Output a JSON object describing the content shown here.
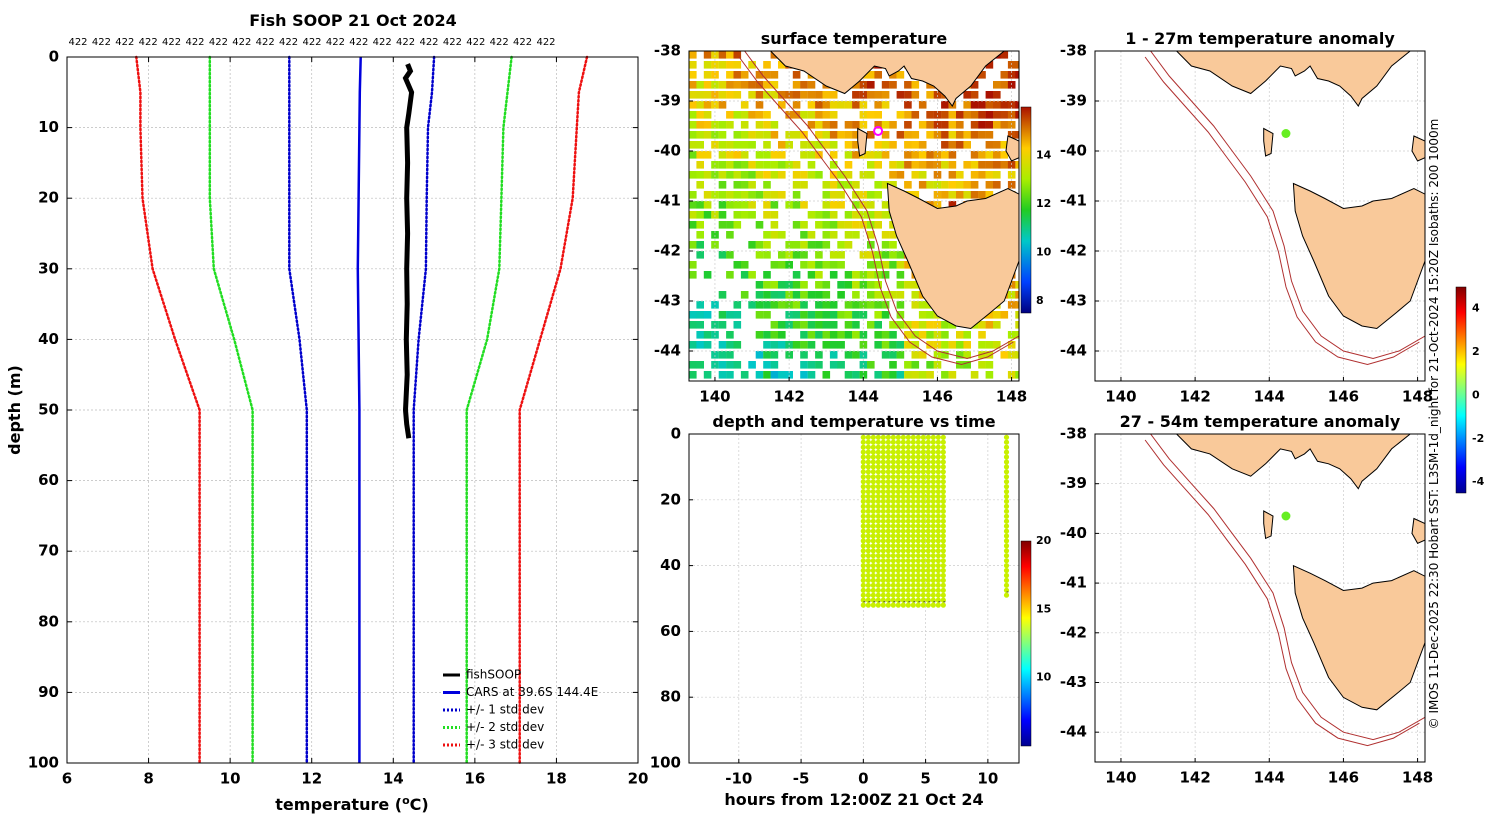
{
  "figure": {
    "side_note": "© IMOS 11-Dec-2025 22:30 Hobart SST: L3SM-1d_night for 21-Oct-2024 15:20Z Isobaths: 200  1000m"
  },
  "colors": {
    "land": "#f9c99a",
    "isobath": "#b03030",
    "fishsoop": "#000000",
    "cars": "#0000dd",
    "std1": "#0000cc",
    "std2": "#22dd22",
    "std3": "#ee1111",
    "marker": "#ff00ff",
    "anomaly_point": "#66ee22",
    "timeseries_point": "#c8f000"
  },
  "chart_data": [
    {
      "id": "profile",
      "type": "line",
      "title": "Fish SOOP 21 Oct 2024",
      "xlabel": "temperature (oC)",
      "ylabel": "depth (m)",
      "xlim": [
        6,
        20
      ],
      "ylim": [
        100,
        0
      ],
      "y_reversed": true,
      "grid": true,
      "xticks": [
        "6",
        "8",
        "10",
        "12",
        "14",
        "16",
        "18",
        "20"
      ],
      "yticks": [
        "0",
        "10",
        "20",
        "30",
        "40",
        "50",
        "60",
        "70",
        "80",
        "90",
        "100"
      ],
      "top_labels": [
        "422",
        "422",
        "422",
        "422",
        "422",
        "422",
        "422",
        "422",
        "422",
        "422",
        "422",
        "422",
        "422",
        "422",
        "422",
        "422",
        "422",
        "422",
        "422",
        "422",
        "422"
      ],
      "legend_position": "bottom-right",
      "series": [
        {
          "name": "fishSOOP",
          "style": "solid",
          "color_key": "fishsoop",
          "depth": [
            1,
            2,
            3,
            5,
            8,
            10,
            15,
            20,
            25,
            30,
            35,
            40,
            45,
            50,
            52,
            54
          ],
          "temp": [
            14.35,
            14.42,
            14.3,
            14.45,
            14.38,
            14.33,
            14.35,
            14.33,
            14.35,
            14.33,
            14.34,
            14.32,
            14.34,
            14.3,
            14.33,
            14.38
          ]
        },
        {
          "name": "CARS at 39.6S 144.4E",
          "style": "solid",
          "color_key": "cars",
          "depth": [
            0,
            5,
            10,
            20,
            30,
            40,
            50,
            60,
            70,
            80,
            90,
            100
          ],
          "temp": [
            13.2,
            13.18,
            13.17,
            13.15,
            13.13,
            13.15,
            13.17,
            13.17,
            13.17,
            13.17,
            13.17,
            13.17
          ]
        },
        {
          "name": "+/- 1 std dev",
          "style": "dotted",
          "color_key": "std1",
          "depth": [
            0,
            5,
            10,
            20,
            30,
            40,
            50,
            60,
            70,
            80,
            90,
            100
          ],
          "temp_low": [
            11.45,
            11.45,
            11.45,
            11.45,
            11.45,
            11.7,
            11.88,
            11.88,
            11.88,
            11.88,
            11.88,
            11.88
          ],
          "temp_high": [
            15.0,
            14.95,
            14.85,
            14.82,
            14.8,
            14.62,
            14.5,
            14.5,
            14.5,
            14.5,
            14.5,
            14.5
          ]
        },
        {
          "name": "+/- 2 std dev",
          "style": "dotted",
          "color_key": "std2",
          "depth": [
            0,
            5,
            10,
            20,
            30,
            40,
            50,
            60,
            70,
            80,
            90,
            100
          ],
          "temp_low": [
            9.5,
            9.5,
            9.5,
            9.5,
            9.6,
            10.1,
            10.55,
            10.55,
            10.55,
            10.55,
            10.55,
            10.55
          ],
          "temp_high": [
            16.9,
            16.8,
            16.7,
            16.65,
            16.6,
            16.3,
            15.8,
            15.8,
            15.8,
            15.8,
            15.8,
            15.8
          ]
        },
        {
          "name": "+/- 3 std dev",
          "style": "dotted",
          "color_key": "std3",
          "depth": [
            0,
            5,
            10,
            20,
            30,
            40,
            50,
            60,
            70,
            80,
            90,
            100
          ],
          "temp_low": [
            7.7,
            7.8,
            7.8,
            7.85,
            8.1,
            8.65,
            9.25,
            9.25,
            9.25,
            9.25,
            9.25,
            9.25
          ],
          "temp_high": [
            18.75,
            18.55,
            18.5,
            18.4,
            18.1,
            17.6,
            17.1,
            17.1,
            17.1,
            17.1,
            17.1,
            17.1
          ]
        }
      ]
    },
    {
      "id": "sst_map",
      "type": "heatmap",
      "title": "surface temperature",
      "xlim": [
        139.3,
        148.2
      ],
      "ylim": [
        -44.6,
        -38
      ],
      "xticks": [
        "140",
        "142",
        "144",
        "146",
        "148"
      ],
      "yticks": [
        "-38",
        "-39",
        "-40",
        "-41",
        "-42",
        "-43",
        "-44"
      ],
      "colorbar": {
        "min": 7.5,
        "max": 16,
        "ticks": [
          "8",
          "10",
          "12",
          "14"
        ],
        "colormap": "jet"
      },
      "marker": {
        "lon": 144.4,
        "lat": -39.6
      }
    },
    {
      "id": "timeseries",
      "type": "scatter",
      "title": "depth and temperature vs time",
      "xlabel": "hours from 12:00Z 21 Oct 24",
      "xlim": [
        -14,
        12.5
      ],
      "ylim": [
        100,
        0
      ],
      "xticks": [
        "-10",
        "-5",
        "0",
        "5",
        "10"
      ],
      "yticks": [
        "0",
        "20",
        "40",
        "60",
        "80",
        "100"
      ],
      "colorbar": {
        "min": 5,
        "max": 20,
        "ticks": [
          "10",
          "15",
          "20"
        ],
        "colormap": "jet"
      },
      "blocks": [
        {
          "hours_start": 0,
          "hours_end": 6.7,
          "depth_top": 1,
          "depth_bottom": 53,
          "temperature": 14.4
        },
        {
          "hours_start": 11.5,
          "hours_end": 11.9,
          "depth_top": 1,
          "depth_bottom": 50,
          "temperature": 14.4
        }
      ]
    },
    {
      "id": "anom_top",
      "type": "scatter",
      "title": "1 - 27m temperature anomaly",
      "xlim": [
        139.3,
        148.2
      ],
      "ylim": [
        -44.6,
        -38
      ],
      "xticks": [
        "140",
        "142",
        "144",
        "146",
        "148"
      ],
      "yticks": [
        "-38",
        "-39",
        "-40",
        "-41",
        "-42",
        "-43",
        "-44"
      ],
      "point": {
        "lon": 144.45,
        "lat": -39.65,
        "anomaly": 0.9
      }
    },
    {
      "id": "anom_bottom",
      "type": "scatter",
      "title": "27 - 54m temperature anomaly",
      "xlim": [
        139.3,
        148.2
      ],
      "ylim": [
        -44.6,
        -38
      ],
      "xticks": [
        "140",
        "142",
        "144",
        "146",
        "148"
      ],
      "yticks": [
        "-38",
        "-39",
        "-40",
        "-41",
        "-42",
        "-43",
        "-44"
      ],
      "point": {
        "lon": 144.45,
        "lat": -39.65,
        "anomaly": 0.9
      }
    },
    {
      "id": "anomaly_colorbar",
      "type": "heatmap",
      "min": -4.5,
      "max": 5,
      "ticks": [
        "4",
        "2",
        "0",
        "-2",
        "-4"
      ],
      "colormap": "jet"
    }
  ]
}
